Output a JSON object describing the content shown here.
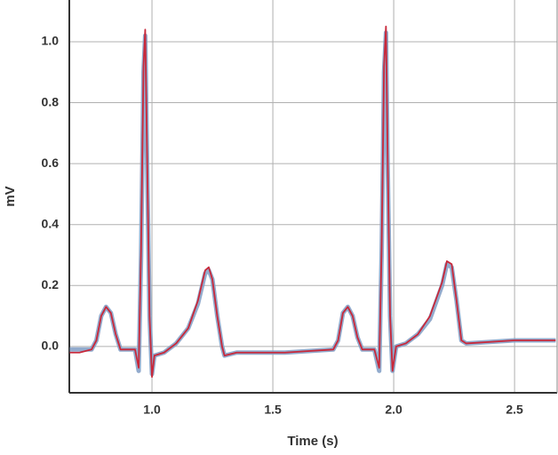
{
  "chart_data": {
    "type": "line",
    "xlabel": "Time (s)",
    "ylabel": "mV",
    "x": [
      0.66,
      0.7,
      0.75,
      0.77,
      0.79,
      0.81,
      0.83,
      0.85,
      0.87,
      0.9,
      0.93,
      0.945,
      0.955,
      0.965,
      0.972,
      0.98,
      0.99,
      1.0,
      1.01,
      1.05,
      1.1,
      1.15,
      1.19,
      1.22,
      1.235,
      1.25,
      1.27,
      1.29,
      1.3,
      1.35,
      1.45,
      1.55,
      1.65,
      1.75,
      1.77,
      1.79,
      1.81,
      1.83,
      1.85,
      1.87,
      1.92,
      1.94,
      1.95,
      1.96,
      1.968,
      1.975,
      1.985,
      1.995,
      2.01,
      2.05,
      2.1,
      2.15,
      2.2,
      2.22,
      2.24,
      2.26,
      2.28,
      2.3,
      2.4,
      2.5,
      2.6,
      2.67
    ],
    "series": [
      {
        "color": "#7f9cc4",
        "values": [
          -0.01,
          -0.01,
          -0.01,
          0.02,
          0.1,
          0.13,
          0.11,
          0.04,
          -0.01,
          -0.01,
          -0.01,
          -0.08,
          0.3,
          0.9,
          1.02,
          0.6,
          0.1,
          -0.09,
          -0.03,
          -0.02,
          0.01,
          0.06,
          0.14,
          0.24,
          0.25,
          0.22,
          0.1,
          0.0,
          -0.03,
          -0.02,
          -0.02,
          -0.02,
          -0.015,
          -0.01,
          0.02,
          0.11,
          0.13,
          0.1,
          0.03,
          -0.01,
          -0.01,
          -0.08,
          0.3,
          0.9,
          1.03,
          0.6,
          0.1,
          -0.08,
          0.0,
          0.01,
          0.04,
          0.09,
          0.2,
          0.27,
          0.26,
          0.15,
          0.02,
          0.01,
          0.015,
          0.02,
          0.02,
          0.02
        ]
      },
      {
        "color": "#c8283a",
        "values": [
          -0.02,
          -0.02,
          -0.01,
          0.02,
          0.1,
          0.13,
          0.11,
          0.04,
          -0.01,
          -0.01,
          -0.01,
          -0.07,
          0.32,
          0.92,
          1.04,
          0.62,
          0.1,
          -0.1,
          -0.03,
          -0.02,
          0.01,
          0.06,
          0.15,
          0.25,
          0.26,
          0.22,
          0.1,
          0.0,
          -0.03,
          -0.02,
          -0.02,
          -0.02,
          -0.015,
          -0.01,
          0.02,
          0.11,
          0.13,
          0.1,
          0.03,
          -0.01,
          -0.01,
          -0.07,
          0.32,
          0.92,
          1.05,
          0.62,
          0.1,
          -0.08,
          0.0,
          0.01,
          0.04,
          0.1,
          0.21,
          0.28,
          0.27,
          0.15,
          0.02,
          0.01,
          0.015,
          0.02,
          0.02,
          0.02
        ]
      }
    ],
    "xlim": [
      0.658,
      2.676
    ],
    "ylim": [
      -0.152,
      1.137
    ],
    "xticks": [
      {
        "value": 1,
        "label": "1.0"
      },
      1.5,
      {
        "value": 2,
        "label": "2.0"
      },
      2.5
    ],
    "yticks": [
      {
        "value": 0,
        "label": "0.0"
      },
      0.2,
      0.4,
      0.6,
      0.8,
      {
        "value": 1,
        "label": "1.0"
      }
    ],
    "grid": true
  }
}
